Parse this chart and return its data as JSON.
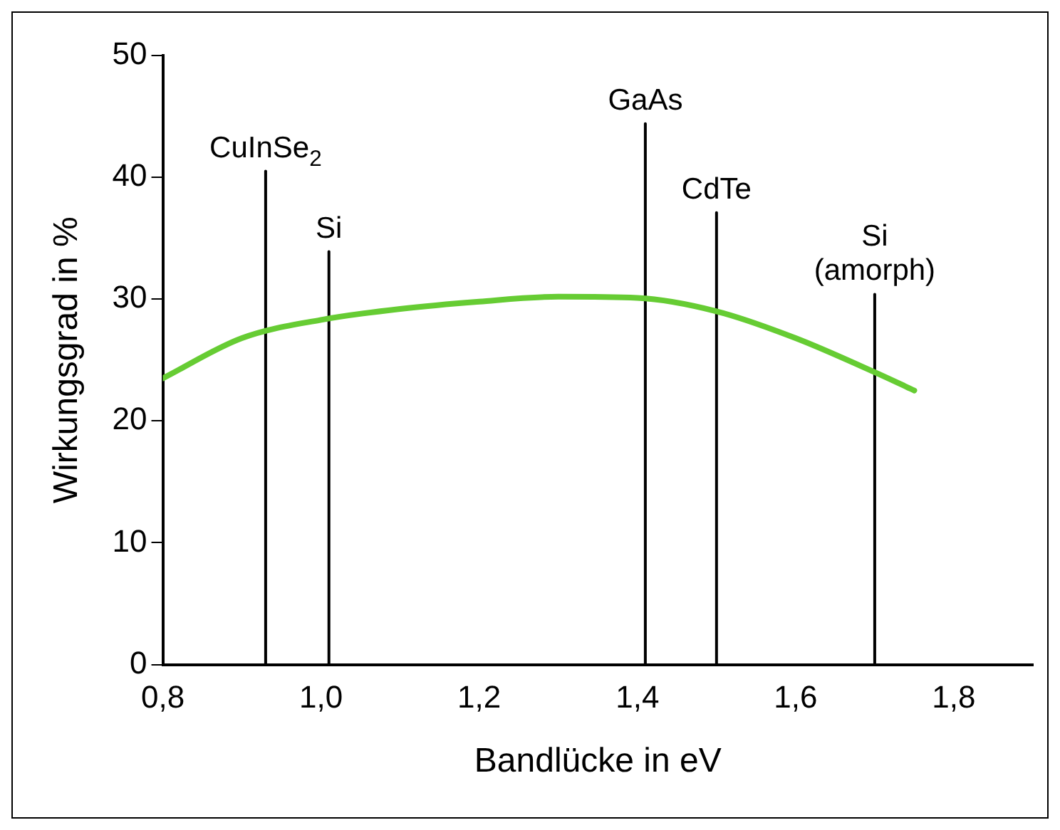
{
  "chart_data": {
    "type": "line",
    "xlabel": "Bandlücke in eV",
    "ylabel": "Wirkungsgrad in %",
    "xlim": [
      0.8,
      1.9
    ],
    "xticks": [
      {
        "value": 0.8,
        "label": "0,8"
      },
      {
        "value": 1.0,
        "label": "1,0"
      },
      {
        "value": 1.2,
        "label": "1,2"
      },
      {
        "value": 1.4,
        "label": "1,4"
      },
      {
        "value": 1.6,
        "label": "1,6"
      },
      {
        "value": 1.8,
        "label": "1,8"
      }
    ],
    "ylim": [
      0,
      50
    ],
    "yticks": [
      0,
      10,
      20,
      30,
      40,
      50
    ],
    "grid": false,
    "legend": false,
    "marker": "none",
    "line_style": "solid",
    "series": [
      {
        "color": "#66cc33",
        "x": [
          0.8,
          0.9,
          1.0,
          1.1,
          1.2,
          1.3,
          1.4,
          1.5,
          1.6,
          1.7,
          1.75
        ],
        "values": [
          23.5,
          26.8,
          28.3,
          29.2,
          29.8,
          30.2,
          30.1,
          29.0,
          26.8,
          24.0,
          22.5
        ]
      },
      {
        "name": "CuInSe$_{2}$",
        "color": "#000000",
        "x": [
          0.93,
          0.93
        ],
        "values": [
          0,
          40.5
        ]
      },
      {
        "name": "Si",
        "color": "#000000",
        "x": [
          1.01,
          1.01
        ],
        "values": [
          0,
          33.9
        ]
      },
      {
        "name": "GaAs",
        "color": "#000000",
        "x": [
          1.41,
          1.41
        ],
        "values": [
          0,
          44.4
        ]
      },
      {
        "name": "CdTe",
        "color": "#000000",
        "x": [
          1.5,
          1.5
        ],
        "values": [
          0,
          37.1
        ]
      },
      {
        "name": "Si (amorph)",
        "color": "#000000",
        "x": [
          1.7,
          1.7
        ],
        "values": [
          0,
          30.4
        ]
      }
    ]
  }
}
